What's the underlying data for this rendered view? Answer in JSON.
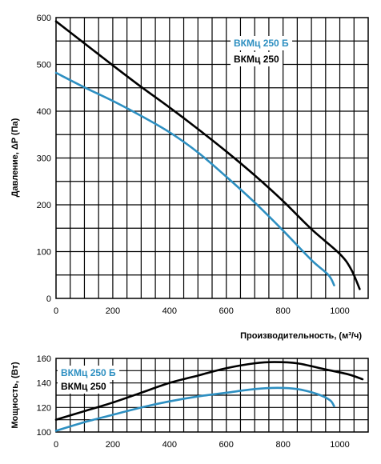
{
  "chart_data": [
    {
      "type": "line",
      "ylabel": "Давление, ΔP (Па)",
      "xlabel": "Производительность, (м³/ч)",
      "xlim": [
        0,
        1100
      ],
      "ylim": [
        0,
        600
      ],
      "xticks": [
        0,
        200,
        400,
        600,
        800,
        1000
      ],
      "yticks": [
        0,
        100,
        200,
        300,
        400,
        500,
        600
      ],
      "grid": true,
      "legend_position": "top-right",
      "series": [
        {
          "name": "ВКМц 250 Б",
          "color": "#2d8fc1",
          "points": [
            [
              0,
              482
            ],
            [
              100,
              451
            ],
            [
              200,
              422
            ],
            [
              300,
              390
            ],
            [
              400,
              355
            ],
            [
              500,
              312
            ],
            [
              600,
              260
            ],
            [
              700,
              205
            ],
            [
              800,
              145
            ],
            [
              900,
              82
            ],
            [
              960,
              50
            ],
            [
              980,
              28
            ]
          ]
        },
        {
          "name": "ВКМц 250",
          "color": "#000000",
          "points": [
            [
              0,
              592
            ],
            [
              100,
              545
            ],
            [
              200,
              498
            ],
            [
              300,
              452
            ],
            [
              400,
              408
            ],
            [
              500,
              362
            ],
            [
              600,
              314
            ],
            [
              700,
              263
            ],
            [
              800,
              208
            ],
            [
              900,
              148
            ],
            [
              1000,
              95
            ],
            [
              1040,
              62
            ],
            [
              1070,
              20
            ]
          ]
        }
      ]
    },
    {
      "type": "line",
      "ylabel": "Мощность, (Вт)",
      "xlim": [
        0,
        1100
      ],
      "ylim": [
        100,
        160
      ],
      "xticks": [
        0,
        200,
        400,
        600,
        800,
        1000
      ],
      "yticks": [
        100,
        120,
        140,
        160
      ],
      "grid": true,
      "legend_position": "top-left",
      "series": [
        {
          "name": "ВКМц 250 Б",
          "color": "#2d8fc1",
          "points": [
            [
              0,
              101
            ],
            [
              100,
              108
            ],
            [
              200,
              114
            ],
            [
              300,
              120
            ],
            [
              400,
              125
            ],
            [
              500,
              129
            ],
            [
              600,
              132
            ],
            [
              700,
              135
            ],
            [
              780,
              136
            ],
            [
              850,
              135
            ],
            [
              920,
              131
            ],
            [
              965,
              126
            ],
            [
              980,
              121
            ]
          ]
        },
        {
          "name": "ВКМц 250",
          "color": "#000000",
          "points": [
            [
              0,
              110
            ],
            [
              100,
              117
            ],
            [
              200,
              124
            ],
            [
              300,
              132
            ],
            [
              400,
              140
            ],
            [
              500,
              146
            ],
            [
              600,
              152
            ],
            [
              700,
              156
            ],
            [
              770,
              157
            ],
            [
              850,
              156
            ],
            [
              950,
              151
            ],
            [
              1030,
              147
            ],
            [
              1080,
              143
            ]
          ]
        }
      ]
    }
  ]
}
